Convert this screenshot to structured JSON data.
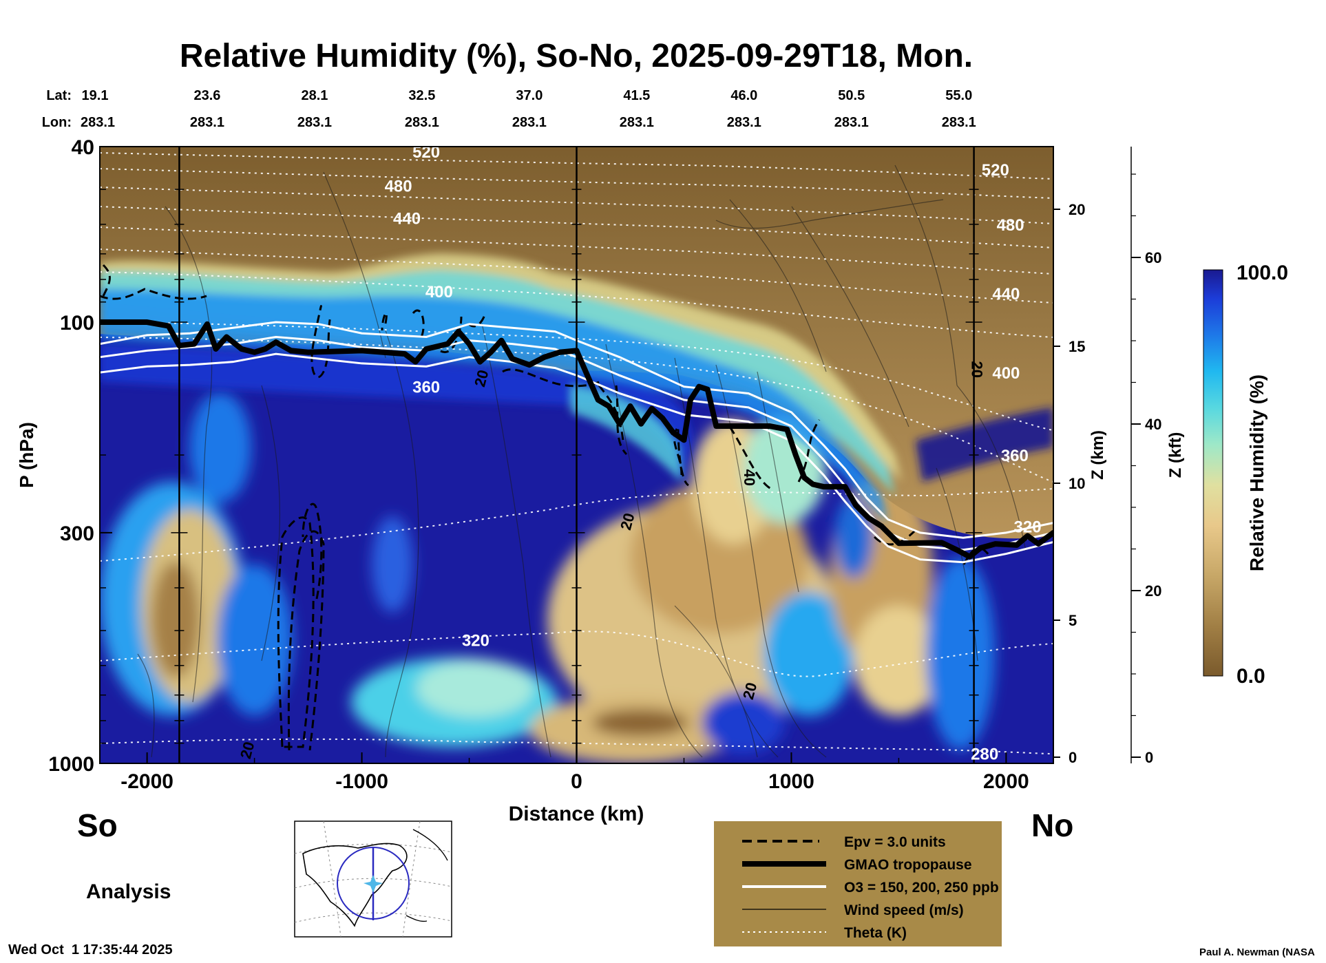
{
  "chart_data": {
    "type": "heatmap",
    "title": "Relative Humidity (%), So-No, 2025-09-29T18, Mon.",
    "xlabel": "Distance (km)",
    "ylabel": "P (hPa)",
    "z_km_label": "Z (km)",
    "z_kft_label": "Z (kft)",
    "x_ticks": [
      "-2000",
      "-1000",
      "0",
      "1000",
      "2000"
    ],
    "x_tick_values": [
      -2000,
      -1000,
      0,
      1000,
      2000
    ],
    "xlim": [
      -2220,
      2220
    ],
    "y_ticks": [
      "40",
      "100",
      "300",
      "1000"
    ],
    "y_tick_values": [
      40,
      100,
      300,
      1000
    ],
    "ylim": [
      1000,
      40
    ],
    "y_scale": "log",
    "z_km_ticks": [
      "0",
      "5",
      "10",
      "15",
      "20"
    ],
    "z_km_values": [
      0,
      5,
      10,
      15,
      20
    ],
    "z_kft_ticks": [
      "0",
      "20",
      "40",
      "60"
    ],
    "z_kft_values": [
      0,
      20,
      40,
      60
    ],
    "lat_label": "Lat:",
    "lon_label": "Lon:",
    "lat_values": [
      "19.1",
      "23.6",
      "28.1",
      "32.5",
      "37.0",
      "41.5",
      "46.0",
      "50.5",
      "55.0"
    ],
    "lon_values": [
      "283.1",
      "283.1",
      "283.1",
      "283.1",
      "283.1",
      "283.1",
      "283.1",
      "283.1",
      "283.1"
    ],
    "station_distances": [
      -2220,
      -1720,
      -1220,
      -720,
      -220,
      280,
      780,
      1280,
      1780
    ],
    "vertical_lines_km": [
      -1850,
      0,
      1850
    ],
    "left_end_label": "So",
    "right_end_label": "No",
    "analysis_label": "Analysis",
    "colorbar": {
      "label": "Relative Humidity (%)",
      "max_label": "100.0",
      "min_label": "0.0",
      "min": 0.0,
      "max": 100.0,
      "colors": [
        "#7a5a2c",
        "#a07e44",
        "#c8a868",
        "#e8c88a",
        "#e0e0a0",
        "#9ee8c8",
        "#58d8e0",
        "#20b8f0",
        "#1e78e8",
        "#1c3cd8",
        "#1a1a90"
      ]
    },
    "theta_labels": [
      {
        "text": "520",
        "x": -700,
        "p": 41
      },
      {
        "text": "480",
        "x": -830,
        "p": 49
      },
      {
        "text": "440",
        "x": -790,
        "p": 58
      },
      {
        "text": "400",
        "x": -640,
        "p": 85
      },
      {
        "text": "360",
        "x": -700,
        "p": 140
      },
      {
        "text": "320",
        "x": -470,
        "p": 525
      },
      {
        "text": "520",
        "x": 1950,
        "p": 45
      },
      {
        "text": "480",
        "x": 2020,
        "p": 60
      },
      {
        "text": "440",
        "x": 2000,
        "p": 86
      },
      {
        "text": "400",
        "x": 2000,
        "p": 130
      },
      {
        "text": "360",
        "x": 2040,
        "p": 200
      },
      {
        "text": "320",
        "x": 2100,
        "p": 290
      },
      {
        "text": "280",
        "x": 1900,
        "p": 950
      }
    ],
    "wind_labels": [
      {
        "text": "20",
        "x": -420,
        "p": 135
      },
      {
        "text": "20",
        "x": 1840,
        "p": 128
      },
      {
        "text": "40",
        "x": 780,
        "p": 225
      },
      {
        "text": "20",
        "x": 260,
        "p": 285
      },
      {
        "text": "20",
        "x": 830,
        "p": 690
      },
      {
        "text": "20",
        "x": -1510,
        "p": 940
      }
    ],
    "tropopause": [
      {
        "x": -2220,
        "p": 100
      },
      {
        "x": -2000,
        "p": 100
      },
      {
        "x": -1900,
        "p": 102
      },
      {
        "x": -1850,
        "p": 113
      },
      {
        "x": -1780,
        "p": 112
      },
      {
        "x": -1720,
        "p": 101
      },
      {
        "x": -1680,
        "p": 115
      },
      {
        "x": -1630,
        "p": 108
      },
      {
        "x": -1560,
        "p": 115
      },
      {
        "x": -1500,
        "p": 117
      },
      {
        "x": -1450,
        "p": 115
      },
      {
        "x": -1400,
        "p": 111
      },
      {
        "x": -1330,
        "p": 116
      },
      {
        "x": -1250,
        "p": 117
      },
      {
        "x": -1000,
        "p": 116
      },
      {
        "x": -800,
        "p": 118
      },
      {
        "x": -750,
        "p": 123
      },
      {
        "x": -700,
        "p": 115
      },
      {
        "x": -600,
        "p": 112
      },
      {
        "x": -550,
        "p": 105
      },
      {
        "x": -500,
        "p": 112
      },
      {
        "x": -450,
        "p": 123
      },
      {
        "x": -400,
        "p": 117
      },
      {
        "x": -350,
        "p": 110
      },
      {
        "x": -300,
        "p": 121
      },
      {
        "x": -220,
        "p": 125
      },
      {
        "x": -150,
        "p": 120
      },
      {
        "x": -80,
        "p": 117
      },
      {
        "x": 0,
        "p": 116
      },
      {
        "x": 50,
        "p": 132
      },
      {
        "x": 100,
        "p": 150
      },
      {
        "x": 150,
        "p": 155
      },
      {
        "x": 200,
        "p": 170
      },
      {
        "x": 250,
        "p": 155
      },
      {
        "x": 300,
        "p": 170
      },
      {
        "x": 350,
        "p": 157
      },
      {
        "x": 400,
        "p": 165
      },
      {
        "x": 450,
        "p": 178
      },
      {
        "x": 500,
        "p": 185
      },
      {
        "x": 530,
        "p": 150
      },
      {
        "x": 570,
        "p": 140
      },
      {
        "x": 610,
        "p": 142
      },
      {
        "x": 650,
        "p": 172
      },
      {
        "x": 750,
        "p": 172
      },
      {
        "x": 900,
        "p": 172
      },
      {
        "x": 980,
        "p": 175
      },
      {
        "x": 1020,
        "p": 200
      },
      {
        "x": 1060,
        "p": 225
      },
      {
        "x": 1100,
        "p": 233
      },
      {
        "x": 1150,
        "p": 236
      },
      {
        "x": 1250,
        "p": 236
      },
      {
        "x": 1300,
        "p": 260
      },
      {
        "x": 1360,
        "p": 278
      },
      {
        "x": 1420,
        "p": 290
      },
      {
        "x": 1450,
        "p": 300
      },
      {
        "x": 1500,
        "p": 317
      },
      {
        "x": 1700,
        "p": 316
      },
      {
        "x": 1770,
        "p": 328
      },
      {
        "x": 1830,
        "p": 340
      },
      {
        "x": 1880,
        "p": 325
      },
      {
        "x": 1950,
        "p": 318
      },
      {
        "x": 2050,
        "p": 320
      },
      {
        "x": 2100,
        "p": 305
      },
      {
        "x": 2150,
        "p": 318
      },
      {
        "x": 2220,
        "p": 300
      }
    ],
    "ozone_contours": [
      [
        {
          "x": -2220,
          "p": 112
        },
        {
          "x": -2000,
          "p": 107
        },
        {
          "x": -1800,
          "p": 106
        },
        {
          "x": -1600,
          "p": 103
        },
        {
          "x": -1400,
          "p": 100
        },
        {
          "x": -1200,
          "p": 101
        },
        {
          "x": -1000,
          "p": 106
        },
        {
          "x": -700,
          "p": 108
        },
        {
          "x": -500,
          "p": 101
        },
        {
          "x": -300,
          "p": 103
        },
        {
          "x": -100,
          "p": 105
        },
        {
          "x": 0,
          "p": 110
        },
        {
          "x": 200,
          "p": 120
        },
        {
          "x": 500,
          "p": 140
        },
        {
          "x": 800,
          "p": 145
        },
        {
          "x": 1000,
          "p": 160
        },
        {
          "x": 1150,
          "p": 190
        },
        {
          "x": 1250,
          "p": 215
        },
        {
          "x": 1350,
          "p": 250
        },
        {
          "x": 1450,
          "p": 280
        },
        {
          "x": 1600,
          "p": 300
        },
        {
          "x": 1800,
          "p": 308
        },
        {
          "x": 2000,
          "p": 300
        },
        {
          "x": 2220,
          "p": 285
        }
      ],
      [
        {
          "x": -2220,
          "p": 120
        },
        {
          "x": -2000,
          "p": 116
        },
        {
          "x": -1800,
          "p": 114
        },
        {
          "x": -1600,
          "p": 112
        },
        {
          "x": -1400,
          "p": 108
        },
        {
          "x": -1200,
          "p": 110
        },
        {
          "x": -1000,
          "p": 114
        },
        {
          "x": -700,
          "p": 116
        },
        {
          "x": -500,
          "p": 110
        },
        {
          "x": -300,
          "p": 112
        },
        {
          "x": -100,
          "p": 115
        },
        {
          "x": 0,
          "p": 120
        },
        {
          "x": 200,
          "p": 132
        },
        {
          "x": 500,
          "p": 150
        },
        {
          "x": 800,
          "p": 156
        },
        {
          "x": 1000,
          "p": 172
        },
        {
          "x": 1150,
          "p": 205
        },
        {
          "x": 1250,
          "p": 235
        },
        {
          "x": 1350,
          "p": 268
        },
        {
          "x": 1450,
          "p": 300
        },
        {
          "x": 1600,
          "p": 322
        },
        {
          "x": 1800,
          "p": 328
        },
        {
          "x": 2000,
          "p": 318
        },
        {
          "x": 2220,
          "p": 300
        }
      ],
      [
        {
          "x": -2220,
          "p": 130
        },
        {
          "x": -2000,
          "p": 126
        },
        {
          "x": -1800,
          "p": 125
        },
        {
          "x": -1600,
          "p": 123
        },
        {
          "x": -1400,
          "p": 118
        },
        {
          "x": -1200,
          "p": 121
        },
        {
          "x": -1000,
          "p": 124
        },
        {
          "x": -700,
          "p": 126
        },
        {
          "x": -500,
          "p": 120
        },
        {
          "x": -300,
          "p": 123
        },
        {
          "x": -100,
          "p": 127
        },
        {
          "x": 0,
          "p": 132
        },
        {
          "x": 200,
          "p": 145
        },
        {
          "x": 500,
          "p": 162
        },
        {
          "x": 800,
          "p": 168
        },
        {
          "x": 1000,
          "p": 186
        },
        {
          "x": 1150,
          "p": 222
        },
        {
          "x": 1250,
          "p": 255
        },
        {
          "x": 1350,
          "p": 290
        },
        {
          "x": 1450,
          "p": 322
        },
        {
          "x": 1600,
          "p": 345
        },
        {
          "x": 1800,
          "p": 350
        },
        {
          "x": 2000,
          "p": 335
        },
        {
          "x": 2220,
          "p": 315
        }
      ]
    ],
    "legend": {
      "position": "bottom-center",
      "entries": [
        {
          "label": "Epv = 3.0 units",
          "style": "dashed-black"
        },
        {
          "label": "GMAO tropopause",
          "style": "thick-black"
        },
        {
          "label": "O3 = 150, 200, 250 ppb",
          "style": "white"
        },
        {
          "label": "Wind speed (m/s)",
          "style": "thin-black"
        },
        {
          "label": "Theta (K)",
          "style": "dotted-white"
        }
      ]
    },
    "timestamp": "Wed Oct  1 17:35:44 2025",
    "credit": "Paul A. Newman (NASA"
  },
  "colors": {
    "legend_bg": "#a88a48",
    "background": "#ffffff"
  }
}
